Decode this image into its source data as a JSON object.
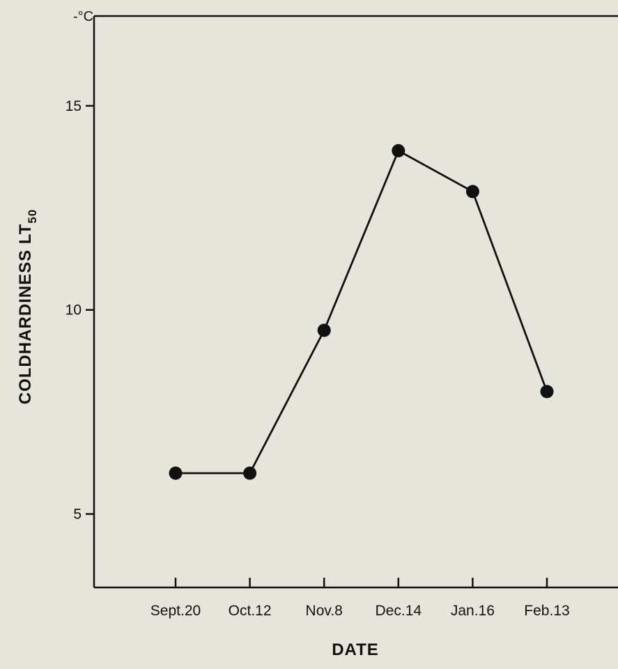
{
  "chart_data": {
    "type": "line",
    "title": "",
    "xlabel": "DATE",
    "ylabel_main": "COLDHARDINESS LT",
    "ylabel_sub": "50",
    "y_unit": "-°C",
    "categories": [
      "Sept.20",
      "Oct.12",
      "Nov.8",
      "Dec.14",
      "Jan.16",
      "Feb.13"
    ],
    "values": [
      6.0,
      6.0,
      9.5,
      13.9,
      12.9,
      8.0
    ],
    "y_ticks": [
      5,
      10,
      15
    ],
    "ylim": [
      3.2,
      17.2
    ],
    "grid": false,
    "line_color": "#111111",
    "marker_color": "#111111"
  }
}
